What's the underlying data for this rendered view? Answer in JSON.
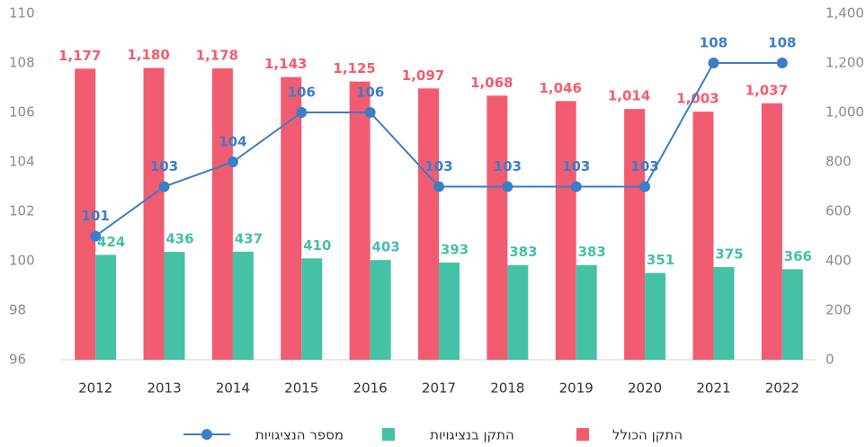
{
  "chart_data": {
    "type": "bar",
    "categories": [
      "2012",
      "2013",
      "2014",
      "2015",
      "2016",
      "2017",
      "2018",
      "2019",
      "2020",
      "2021",
      "2022"
    ],
    "series": [
      {
        "name": "התקן הכולל",
        "color": "#f25c70",
        "axis": "y2",
        "values": [
          1177,
          1180,
          1178,
          1143,
          1125,
          1097,
          1068,
          1046,
          1014,
          1003,
          1037
        ],
        "value_labels": [
          "1,177",
          "1,180",
          "1,178",
          "1,143",
          "1,125",
          "1,097",
          "1,068",
          "1,046",
          "1,014",
          "1,003",
          "1,037"
        ]
      },
      {
        "name": "התקן בנציגויות",
        "color": "#45c1a5",
        "axis": "y2",
        "values": [
          424,
          436,
          437,
          410,
          403,
          393,
          383,
          383,
          351,
          375,
          366
        ]
      },
      {
        "name": "מספר הנציגויות",
        "color": "#3d7cc9",
        "type": "line",
        "values": [
          101,
          103,
          104,
          106,
          106,
          103,
          103,
          103,
          103,
          108,
          108
        ]
      }
    ],
    "ylim": [
      96,
      110
    ],
    "yticks": [
      96,
      98,
      100,
      102,
      104,
      106,
      108,
      110
    ],
    "y2lim": [
      0,
      1400
    ],
    "y2ticks": [
      0,
      200,
      400,
      600,
      800,
      {
        "value": 1000,
        "label": "1,000"
      },
      {
        "value": 1200,
        "label": "1,200"
      },
      {
        "value": 1400,
        "label": "1,400"
      }
    ],
    "legend": "bottom"
  }
}
